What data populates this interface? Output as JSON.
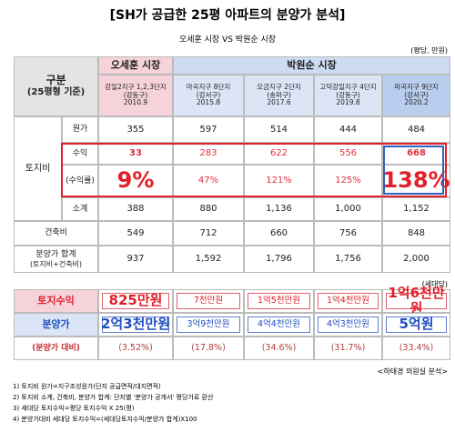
{
  "header": {
    "title": "[SH가 공급한 25평 아파트의 분양가 분석]",
    "subtitle": "오세훈 시장 VS 박원순 시장",
    "unit": "(평당, 만원)"
  },
  "table": {
    "corner": [
      "구분",
      "(25평형 기준)"
    ],
    "groups": [
      "오세훈 시장",
      "박원순 시장"
    ],
    "complexes": [
      {
        "name": "강일2지구 1,2,3단지",
        "district": "(강동구)",
        "date": "2010.9"
      },
      {
        "name": "마곡지구 8단지",
        "district": "(강서구)",
        "date": "2015.8"
      },
      {
        "name": "오금지구 2단지",
        "district": "(송파구)",
        "date": "2017.6"
      },
      {
        "name": "고덕강일지구 4단지",
        "district": "(강동구)",
        "date": "2019.8"
      },
      {
        "name": "마곡지구 9단지",
        "district": "(강서구)",
        "date": "2020.2"
      }
    ],
    "land_group": "토지비",
    "rows": [
      {
        "label": "원가",
        "values": [
          "355",
          "597",
          "514",
          "444",
          "484"
        ]
      },
      {
        "label": "수익",
        "values": [
          "33",
          "283",
          "622",
          "556",
          "668"
        ]
      },
      {
        "label": "(수익률)",
        "values": [
          "9%",
          "47%",
          "121%",
          "125%",
          "138%"
        ]
      },
      {
        "label": "소계",
        "values": [
          "388",
          "880",
          "1,136",
          "1,000",
          "1,152"
        ]
      },
      {
        "label": "건축비",
        "values": [
          "549",
          "712",
          "660",
          "756",
          "848"
        ]
      },
      {
        "label": [
          "분양가 합계",
          "(토지비+건축비)"
        ],
        "values": [
          "937",
          "1,592",
          "1,796",
          "1,756",
          "2,000"
        ]
      }
    ]
  },
  "table2": {
    "unit": "(세대당)",
    "rows": [
      {
        "label": "토지수익",
        "values": [
          "825만원",
          "7천만원",
          "1억5천만원",
          "1억4천만원",
          "1억6천만원"
        ]
      },
      {
        "label": "분양가",
        "values": [
          "2억3천만원",
          "3억9천만원",
          "4억4천만원",
          "4억3천만원",
          "5억원"
        ]
      },
      {
        "label": "(분양가 대비)",
        "values": [
          "(3.52%)",
          "(17.8%)",
          "(34.6%)",
          "(31.7%)",
          "(33.4%)"
        ]
      }
    ]
  },
  "source": "<하태경 의원실 분석>",
  "notes": [
    "1) 토지비 원가=지구조성원가(단지 공급면적/대지면적)",
    "2) 토지비 소계, 건축비, 분양가 합계: 단지별 '분양가 공개서' 평당가로 환산",
    "3) 세대당 토지수익=평당 토지수익 X 25(평)",
    "4) 분양가대비 세대당 토지수익=(세대당토지수익/분양가 합계)X100"
  ]
}
